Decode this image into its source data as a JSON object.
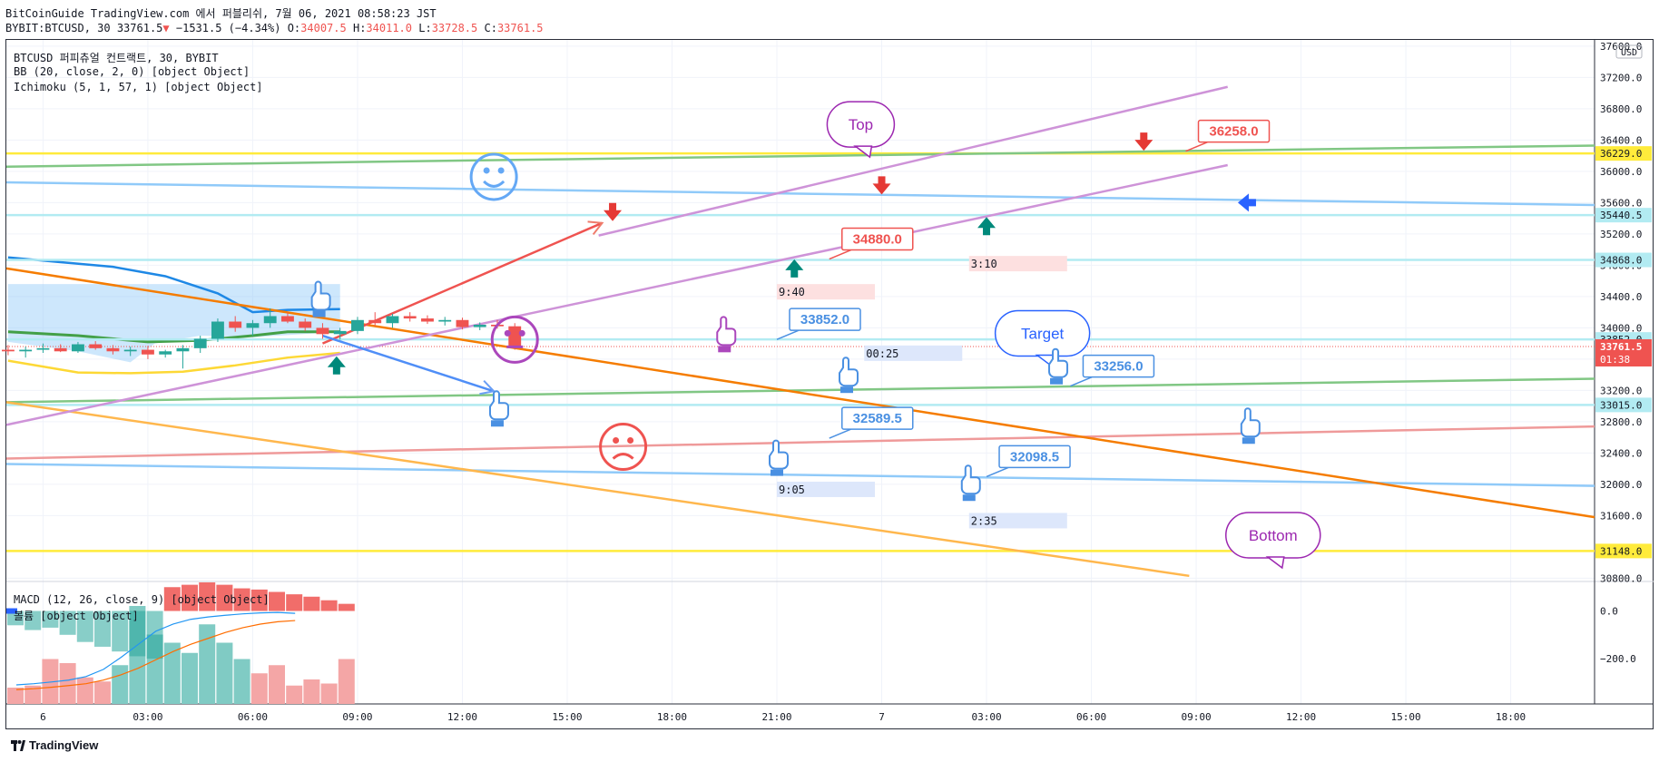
{
  "header": {
    "line1": "BitCoinGuide TradingView.com 에서 퍼블리쉬, 7월 06, 2021 08:58:23 JST",
    "symbol": "BYBIT:BTCUSD, 30",
    "last": "33761.5",
    "change": "−1531.5 (−4.34%)",
    "open_label": "O:",
    "open": "34007.5",
    "high_label": "H:",
    "high": "34011.0",
    "low_label": "L:",
    "low": "33728.5",
    "close_label": "C:",
    "close": "33761.5"
  },
  "legend": {
    "title": "BTCUSD 퍼피츄얼 컨트랙트, 30, BYBIT",
    "bb": "BB (20, close, 2, 0) [object Object]",
    "ichimoku": "Ichimoku (5, 1, 57, 1) [object Object]",
    "macd": "MACD (12, 26, close, 9) [object Object]",
    "volume": "볼륨 [object Object]"
  },
  "footer": {
    "brand": "TradingView"
  },
  "chart_data": {
    "type": "line",
    "title": "",
    "y_axis": {
      "unit": "USD",
      "ticks": [
        37600,
        37200,
        36800,
        36400,
        36000,
        35600,
        35200,
        34800,
        34400,
        34000,
        33600,
        33200,
        32800,
        32400,
        32000,
        31600,
        30800
      ],
      "tick_labels": [
        "37600.0",
        "37200.0",
        "36800.0",
        "36400.0",
        "36000.0",
        "35600.0",
        "35200.0",
        "34800.0",
        "34400.0",
        "34000.0",
        "33600.0",
        "33200.0",
        "32800.0",
        "32400.0",
        "32000.0",
        "31600.0",
        "30800.0"
      ],
      "ylim": [
        30770,
        37680
      ]
    },
    "x_axis": {
      "tick_labels": [
        "6",
        "03:00",
        "06:00",
        "09:00",
        "12:00",
        "15:00",
        "18:00",
        "21:00",
        "7",
        "03:00",
        "06:00",
        "09:00",
        "12:00",
        "15:00",
        "18:00"
      ],
      "tick_hours": [
        0,
        3,
        6,
        9,
        12,
        15,
        18,
        21,
        24,
        27,
        30,
        33,
        36,
        39,
        42
      ],
      "xlim_hours": [
        -1.05,
        44.4
      ]
    },
    "price_tags": [
      {
        "value": "36229.0",
        "price": 36229,
        "color": "#ffeb3b",
        "text_color": "#131722"
      },
      {
        "value": "35440.5",
        "price": 35440.5,
        "color": "#b2ebf2",
        "text_color": "#131722"
      },
      {
        "value": "34868.0",
        "price": 34868,
        "color": "#b2ebf2",
        "text_color": "#131722"
      },
      {
        "value": "33852.0",
        "price": 33852,
        "color": "#b2ebf2",
        "text_color": "#131722"
      },
      {
        "value": "33015.0",
        "price": 33015,
        "color": "#b2ebf2",
        "text_color": "#131722"
      },
      {
        "value": "31148.0",
        "price": 31148,
        "color": "#ffeb3b",
        "text_color": "#131722"
      }
    ],
    "current_price": {
      "value": "33761.5",
      "countdown": "01:38",
      "price": 33761.5,
      "color": "#ef5350"
    },
    "horizontal_lines": [
      {
        "price": 36229,
        "color": "#ffeb3b"
      },
      {
        "price": 35440.5,
        "color": "#b2ebf2"
      },
      {
        "price": 34868,
        "color": "#b2ebf2"
      },
      {
        "price": 33852,
        "color": "#b2ebf2"
      },
      {
        "price": 33015,
        "color": "#b2ebf2"
      },
      {
        "price": 31148,
        "color": "#ffeb3b"
      }
    ],
    "trend_lines": [
      {
        "color": "#81c784",
        "from": [
          -1.05,
          36060
        ],
        "to": [
          44.4,
          36330
        ]
      },
      {
        "color": "#90caf9",
        "from": [
          -1.05,
          35860
        ],
        "to": [
          44.4,
          35570
        ]
      },
      {
        "color": "#90caf9",
        "from": [
          -1.05,
          32260
        ],
        "to": [
          44.4,
          31980
        ]
      },
      {
        "color": "#81c784",
        "from": [
          -1.05,
          33050
        ],
        "to": [
          44.4,
          33350
        ]
      },
      {
        "color": "#ef9a9a",
        "from": [
          -1.05,
          32330
        ],
        "to": [
          44.4,
          32740
        ]
      },
      {
        "color": "#f57c00",
        "from": [
          -1.05,
          34760
        ],
        "to": [
          44.4,
          31580
        ]
      },
      {
        "color": "#ffb74d",
        "from": [
          -1.05,
          33050
        ],
        "to": [
          32.8,
          30830
        ]
      },
      {
        "color": "#ce93d8",
        "from": [
          -1.05,
          32760
        ],
        "to": [
          33.9,
          36080
        ]
      },
      {
        "color": "#ce93d8",
        "from": [
          15.9,
          35180
        ],
        "to": [
          33.9,
          37080
        ]
      },
      {
        "color": "#ef5350",
        "from": [
          8.0,
          33800
        ],
        "to": [
          16.0,
          35340
        ]
      },
      {
        "color": "#4f8ef7",
        "from": [
          8.0,
          33900
        ],
        "to": [
          12.9,
          33190
        ]
      }
    ],
    "price_labels": [
      {
        "text": "36258.0",
        "hour": 32.7,
        "price": 36258,
        "color": "#ef5350"
      },
      {
        "text": "34880.0",
        "hour": 22.5,
        "price": 34880,
        "color": "#ef5350"
      },
      {
        "text": "33852.0",
        "hour": 21.0,
        "price": 33852,
        "color": "#4a90e2"
      },
      {
        "text": "33256.0",
        "hour": 29.4,
        "price": 33256,
        "color": "#4a90e2"
      },
      {
        "text": "32589.5",
        "hour": 22.5,
        "price": 32589.5,
        "color": "#4a90e2"
      },
      {
        "text": "32098.5",
        "hour": 27.0,
        "price": 32098.5,
        "color": "#4a90e2"
      }
    ],
    "time_notes": [
      {
        "text": "9:40",
        "hour": 21.0,
        "price": 34455,
        "color": "#fde0e0"
      },
      {
        "text": "3:10",
        "hour": 26.5,
        "price": 34815,
        "color": "#fde0e0"
      },
      {
        "text": "00:25",
        "hour": 23.5,
        "price": 33670,
        "color": "#dde7fb"
      },
      {
        "text": "9:05",
        "hour": 21.0,
        "price": 31930,
        "color": "#dde7fb"
      },
      {
        "text": "2:35",
        "hour": 26.5,
        "price": 31530,
        "color": "#dde7fb"
      }
    ],
    "callouts": [
      {
        "text": "Top",
        "hour": 23.4,
        "price": 36600,
        "color": "#9c27b0"
      },
      {
        "text": "Target",
        "hour": 28.6,
        "price": 33930,
        "color": "#2962ff"
      },
      {
        "text": "Bottom",
        "hour": 35.2,
        "price": 31350,
        "color": "#9c27b0"
      }
    ],
    "arrows": [
      {
        "dir": "down",
        "hour": 16.3,
        "price": 35480,
        "color": "#e53935"
      },
      {
        "dir": "down",
        "hour": 24.0,
        "price": 35820,
        "color": "#e53935"
      },
      {
        "dir": "down",
        "hour": 31.5,
        "price": 36380,
        "color": "#e53935"
      },
      {
        "dir": "up",
        "hour": 27.0,
        "price": 35300,
        "color": "#00897b"
      },
      {
        "dir": "up",
        "hour": 21.5,
        "price": 34760,
        "color": "#00897b"
      },
      {
        "dir": "up",
        "hour": 8.4,
        "price": 33520,
        "color": "#00897b"
      },
      {
        "dir": "left",
        "hour": 34.4,
        "price": 35600,
        "color": "#2962ff"
      }
    ],
    "emojis": [
      {
        "kind": "smile",
        "hour": 12.9,
        "price": 35930,
        "color": "#64a8f5"
      },
      {
        "kind": "neutral",
        "hour": 13.5,
        "price": 33850,
        "color": "#ab47bc"
      },
      {
        "kind": "sad",
        "hour": 16.6,
        "price": 32480,
        "color": "#ef5350"
      }
    ],
    "hand_pointers": [
      {
        "hour": 7.9,
        "price": 34300,
        "color": "#4a90e2"
      },
      {
        "hour": 19.5,
        "price": 33850,
        "color": "#ab47bc"
      },
      {
        "hour": 13.0,
        "price": 32900,
        "color": "#4a90e2"
      },
      {
        "hour": 21.0,
        "price": 32270,
        "color": "#4a90e2"
      },
      {
        "hour": 23.0,
        "price": 33330,
        "color": "#4a90e2"
      },
      {
        "hour": 26.5,
        "price": 31950,
        "color": "#4a90e2"
      },
      {
        "hour": 29.0,
        "price": 33440,
        "color": "#4a90e2"
      },
      {
        "hour": 34.5,
        "price": 32680,
        "color": "#4a90e2"
      }
    ],
    "candles": {
      "start_hour": -1.0,
      "step_hours": 0.5,
      "ohlc": [
        [
          33720,
          33780,
          33650,
          33700
        ],
        [
          33700,
          33760,
          33620,
          33720
        ],
        [
          33720,
          33800,
          33680,
          33740
        ],
        [
          33740,
          33790,
          33690,
          33700
        ],
        [
          33700,
          33820,
          33680,
          33790
        ],
        [
          33790,
          33830,
          33720,
          33740
        ],
        [
          33740,
          33780,
          33660,
          33700
        ],
        [
          33700,
          33760,
          33640,
          33720
        ],
        [
          33720,
          33770,
          33600,
          33660
        ],
        [
          33660,
          33720,
          33620,
          33700
        ],
        [
          33700,
          33780,
          33480,
          33740
        ],
        [
          33740,
          33900,
          33680,
          33860
        ],
        [
          33860,
          34120,
          33820,
          34080
        ],
        [
          34080,
          34150,
          33950,
          34000
        ],
        [
          34000,
          34100,
          33900,
          34060
        ],
        [
          34060,
          34250,
          34000,
          34150
        ],
        [
          34150,
          34200,
          34060,
          34080
        ],
        [
          34080,
          34120,
          33960,
          34000
        ],
        [
          34000,
          34060,
          33860,
          33920
        ],
        [
          33920,
          34000,
          33850,
          33960
        ],
        [
          33960,
          34140,
          33920,
          34100
        ],
        [
          34100,
          34200,
          34020,
          34060
        ],
        [
          34060,
          34180,
          34000,
          34150
        ],
        [
          34150,
          34200,
          34080,
          34120
        ],
        [
          34120,
          34160,
          34050,
          34080
        ],
        [
          34080,
          34140,
          34030,
          34100
        ],
        [
          34100,
          34130,
          33980,
          34010
        ],
        [
          34010,
          34070,
          33970,
          34040
        ],
        [
          34040,
          34100,
          33990,
          34020
        ],
        [
          34020,
          34060,
          33720,
          33760
        ]
      ]
    },
    "indicators": {
      "bb_upper": [
        [
          -1,
          34900
        ],
        [
          0.5,
          34840
        ],
        [
          2,
          34780
        ],
        [
          3.5,
          34660
        ],
        [
          5,
          34440
        ],
        [
          6,
          34200
        ],
        [
          7,
          34230
        ],
        [
          8.5,
          34240
        ]
      ],
      "bb_middle": [
        [
          -1,
          33950
        ],
        [
          1,
          33900
        ],
        [
          3,
          33820
        ],
        [
          4.5,
          33840
        ],
        [
          6,
          33900
        ],
        [
          7,
          33950
        ],
        [
          8.5,
          33950
        ]
      ],
      "bb_lower": [
        [
          -1,
          33580
        ],
        [
          1,
          33430
        ],
        [
          2.5,
          33420
        ],
        [
          4,
          33440
        ],
        [
          5.5,
          33520
        ],
        [
          7,
          33620
        ],
        [
          8.5,
          33680
        ]
      ],
      "cloud_top": [
        [
          -1,
          34560
        ],
        [
          8.5,
          34560
        ]
      ],
      "cloud_bottom": [
        [
          -1,
          33820
        ],
        [
          1,
          33700
        ],
        [
          2.5,
          33560
        ],
        [
          3.2,
          33800
        ],
        [
          4.5,
          33900
        ],
        [
          6,
          33880
        ],
        [
          8.5,
          33950
        ]
      ]
    },
    "macd": {
      "ylim": [
        -390,
        120
      ],
      "tick_values": [
        0,
        -200
      ],
      "tick_labels": [
        "0.0",
        "−200.0"
      ],
      "histogram": [
        -60,
        -80,
        -70,
        -100,
        -130,
        -150,
        -170,
        -190,
        -200,
        100,
        110,
        120,
        110,
        95,
        90,
        80,
        70,
        60,
        45,
        30
      ],
      "macd_line": [
        -310,
        -305,
        -298,
        -290,
        -275,
        -245,
        -195,
        -140,
        -85,
        -55,
        -35,
        -25,
        -18,
        -12,
        -8,
        -6,
        -10
      ],
      "signal_line": [
        -330,
        -326,
        -320,
        -313,
        -305,
        -290,
        -268,
        -240,
        -205,
        -170,
        -140,
        -115,
        -90,
        -70,
        -55,
        -45,
        -40
      ],
      "volume": [
        40,
        45,
        110,
        100,
        65,
        55,
        95,
        240,
        170,
        150,
        125,
        195,
        150,
        110,
        75,
        95,
        45,
        60,
        50,
        110
      ]
    }
  }
}
